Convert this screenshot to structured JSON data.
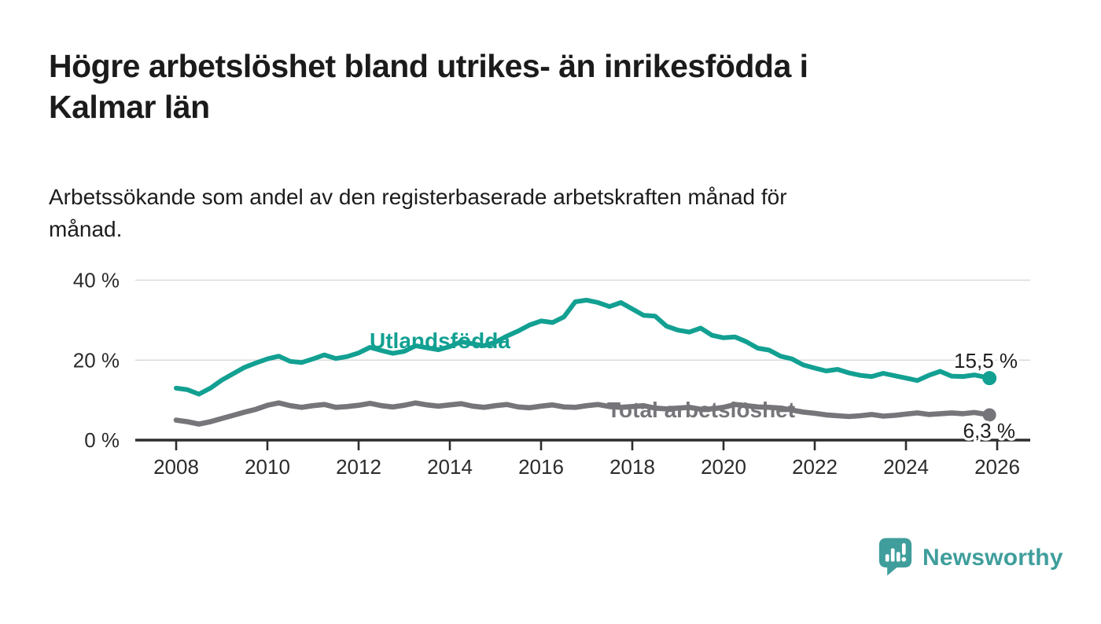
{
  "header": {
    "title": "Högre arbetslöshet bland utrikes- än inrikesfödda i\nKalmar län",
    "subtitle": "Arbetssökande som andel av den registerbaserade arbetskraften månad för\nmånad."
  },
  "chart_data": {
    "type": "line",
    "title": "Högre arbetslöshet bland utrikes- än inrikesfödda i Kalmar län",
    "subtitle": "Arbetssökande som andel av den registerbaserade arbetskraften månad för månad.",
    "x_axis": {
      "ticks": [
        2008,
        2010,
        2012,
        2014,
        2016,
        2018,
        2020,
        2022,
        2024,
        2026
      ],
      "range": [
        2007.1,
        2026.75
      ]
    },
    "y_axis": {
      "ticks": [
        0,
        20,
        40
      ],
      "suffix": " %",
      "range": [
        0,
        42
      ],
      "grid": "horizontal"
    },
    "colors": {
      "grid": "#dadada",
      "axis": "#2e2e2e",
      "tick_text": "#2b2b2b",
      "value_text": "#1e1e1e"
    },
    "series": [
      {
        "name": "Utlandsfödda",
        "color": "#12a092",
        "end_label": "15,5 %",
        "end_value": 15.5,
        "points": [
          [
            2008.0,
            13.0
          ],
          [
            2008.25,
            12.6
          ],
          [
            2008.5,
            11.5
          ],
          [
            2008.75,
            13.0
          ],
          [
            2009.0,
            15.0
          ],
          [
            2009.25,
            16.6
          ],
          [
            2009.5,
            18.2
          ],
          [
            2009.75,
            19.3
          ],
          [
            2010.0,
            20.3
          ],
          [
            2010.25,
            21.0
          ],
          [
            2010.5,
            19.7
          ],
          [
            2010.75,
            19.4
          ],
          [
            2011.0,
            20.3
          ],
          [
            2011.25,
            21.3
          ],
          [
            2011.5,
            20.4
          ],
          [
            2011.75,
            20.9
          ],
          [
            2012.0,
            21.8
          ],
          [
            2012.25,
            23.2
          ],
          [
            2012.5,
            22.4
          ],
          [
            2012.75,
            21.7
          ],
          [
            2013.0,
            22.2
          ],
          [
            2013.25,
            23.6
          ],
          [
            2013.5,
            23.1
          ],
          [
            2013.75,
            22.6
          ],
          [
            2014.0,
            23.4
          ],
          [
            2014.25,
            24.6
          ],
          [
            2014.5,
            24.1
          ],
          [
            2014.75,
            23.6
          ],
          [
            2015.0,
            24.5
          ],
          [
            2015.25,
            26.0
          ],
          [
            2015.5,
            27.3
          ],
          [
            2015.75,
            28.8
          ],
          [
            2016.0,
            29.8
          ],
          [
            2016.25,
            29.4
          ],
          [
            2016.5,
            30.8
          ],
          [
            2016.75,
            34.6
          ],
          [
            2017.0,
            35.0
          ],
          [
            2017.25,
            34.4
          ],
          [
            2017.5,
            33.4
          ],
          [
            2017.75,
            34.4
          ],
          [
            2018.0,
            32.8
          ],
          [
            2018.25,
            31.2
          ],
          [
            2018.5,
            31.0
          ],
          [
            2018.75,
            28.5
          ],
          [
            2019.0,
            27.5
          ],
          [
            2019.25,
            27.0
          ],
          [
            2019.5,
            28.0
          ],
          [
            2019.75,
            26.2
          ],
          [
            2020.0,
            25.6
          ],
          [
            2020.25,
            25.8
          ],
          [
            2020.5,
            24.6
          ],
          [
            2020.75,
            23.0
          ],
          [
            2021.0,
            22.5
          ],
          [
            2021.25,
            21.0
          ],
          [
            2021.5,
            20.3
          ],
          [
            2021.75,
            18.8
          ],
          [
            2022.0,
            18.0
          ],
          [
            2022.25,
            17.3
          ],
          [
            2022.5,
            17.7
          ],
          [
            2022.75,
            16.8
          ],
          [
            2023.0,
            16.2
          ],
          [
            2023.25,
            15.9
          ],
          [
            2023.5,
            16.7
          ],
          [
            2023.75,
            16.1
          ],
          [
            2024.0,
            15.5
          ],
          [
            2024.25,
            14.9
          ],
          [
            2024.5,
            16.2
          ],
          [
            2024.75,
            17.2
          ],
          [
            2025.0,
            16.0
          ],
          [
            2025.25,
            15.9
          ],
          [
            2025.5,
            16.3
          ],
          [
            2025.83,
            15.5
          ]
        ]
      },
      {
        "name": "Total arbetslöshet",
        "color": "#76757a",
        "end_label": "6,3 %",
        "end_value": 6.3,
        "points": [
          [
            2008.0,
            5.0
          ],
          [
            2008.25,
            4.6
          ],
          [
            2008.5,
            4.0
          ],
          [
            2008.75,
            4.6
          ],
          [
            2009.0,
            5.4
          ],
          [
            2009.25,
            6.2
          ],
          [
            2009.5,
            7.0
          ],
          [
            2009.75,
            7.7
          ],
          [
            2010.0,
            8.7
          ],
          [
            2010.25,
            9.3
          ],
          [
            2010.5,
            8.6
          ],
          [
            2010.75,
            8.2
          ],
          [
            2011.0,
            8.6
          ],
          [
            2011.25,
            8.9
          ],
          [
            2011.5,
            8.2
          ],
          [
            2011.75,
            8.4
          ],
          [
            2012.0,
            8.7
          ],
          [
            2012.25,
            9.2
          ],
          [
            2012.5,
            8.6
          ],
          [
            2012.75,
            8.3
          ],
          [
            2013.0,
            8.7
          ],
          [
            2013.25,
            9.3
          ],
          [
            2013.5,
            8.8
          ],
          [
            2013.75,
            8.5
          ],
          [
            2014.0,
            8.8
          ],
          [
            2014.25,
            9.1
          ],
          [
            2014.5,
            8.5
          ],
          [
            2014.75,
            8.2
          ],
          [
            2015.0,
            8.6
          ],
          [
            2015.25,
            8.9
          ],
          [
            2015.5,
            8.3
          ],
          [
            2015.75,
            8.1
          ],
          [
            2016.0,
            8.5
          ],
          [
            2016.25,
            8.8
          ],
          [
            2016.5,
            8.3
          ],
          [
            2016.75,
            8.2
          ],
          [
            2017.0,
            8.6
          ],
          [
            2017.25,
            8.9
          ],
          [
            2017.5,
            8.4
          ],
          [
            2017.75,
            8.2
          ],
          [
            2018.0,
            8.4
          ],
          [
            2018.25,
            8.6
          ],
          [
            2018.5,
            8.0
          ],
          [
            2018.75,
            7.8
          ],
          [
            2019.0,
            8.0
          ],
          [
            2019.25,
            8.2
          ],
          [
            2019.5,
            7.7
          ],
          [
            2019.75,
            7.8
          ],
          [
            2020.0,
            8.2
          ],
          [
            2020.25,
            8.9
          ],
          [
            2020.5,
            8.6
          ],
          [
            2020.75,
            8.3
          ],
          [
            2021.0,
            8.2
          ],
          [
            2021.25,
            8.0
          ],
          [
            2021.5,
            7.5
          ],
          [
            2021.75,
            7.0
          ],
          [
            2022.0,
            6.7
          ],
          [
            2022.25,
            6.3
          ],
          [
            2022.5,
            6.1
          ],
          [
            2022.75,
            5.9
          ],
          [
            2023.0,
            6.1
          ],
          [
            2023.25,
            6.4
          ],
          [
            2023.5,
            6.0
          ],
          [
            2023.75,
            6.2
          ],
          [
            2024.0,
            6.5
          ],
          [
            2024.25,
            6.8
          ],
          [
            2024.5,
            6.4
          ],
          [
            2024.75,
            6.6
          ],
          [
            2025.0,
            6.8
          ],
          [
            2025.25,
            6.6
          ],
          [
            2025.5,
            6.9
          ],
          [
            2025.83,
            6.3
          ]
        ]
      }
    ],
    "legend_position": "inline-labels"
  },
  "footer": {
    "brand": "Newsworthy",
    "brand_color": "#3f9e9c"
  }
}
